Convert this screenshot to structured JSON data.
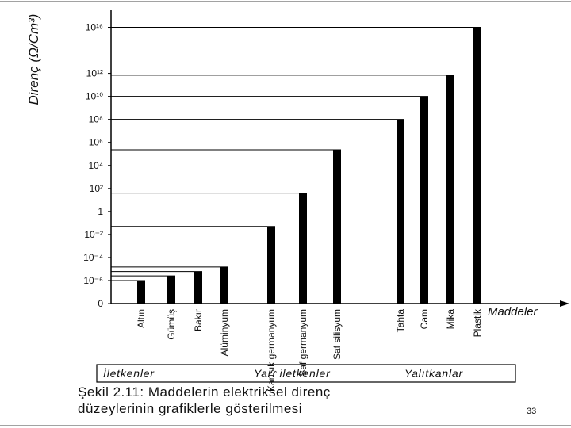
{
  "chart_data": {
    "type": "bar",
    "y_label": "Direnç (Ω/Cm³)",
    "x_label": "Maddeler",
    "log_scale": true,
    "color": "#000000",
    "ylim": [
      1e-08,
      1e+17
    ],
    "yticks": [
      {
        "value": 0,
        "label": "0"
      },
      {
        "value": 1e-06,
        "label": "10⁻⁶"
      },
      {
        "value": 0.0001,
        "label": "10⁻⁴"
      },
      {
        "value": 0.01,
        "label": "10⁻²"
      },
      1,
      {
        "value": 100.0,
        "label": "10²"
      },
      {
        "value": 10000.0,
        "label": "10⁴"
      },
      {
        "value": 1000000.0,
        "label": "10⁶"
      },
      {
        "value": 100000000.0,
        "label": "10⁸"
      },
      {
        "value": 10000000000.0,
        "label": "10¹⁰"
      },
      {
        "value": 1000000000000.0,
        "label": "10¹²"
      },
      {
        "value": 1e+16,
        "label": "10¹⁶"
      }
    ],
    "categories": [
      "Altın",
      "Gümüş",
      "Bakır",
      "Alüminyum",
      "Karışık germanyum",
      "Saf germanyum",
      "Saf silisyum",
      "Tahta",
      "Cam",
      "Mika",
      "Plastik"
    ],
    "values": [
      1e-06,
      2.5e-06,
      6e-06,
      1.5e-05,
      0.05,
      40,
      230000,
      100000000.0,
      10000000000.0,
      700000000000.0,
      1e+16
    ],
    "groups": [
      "İletkenler",
      "Yarı iletkenler",
      "Yalıtkanlar"
    ],
    "caption": [
      "Şekil 2.11: Maddelerin elektriksel direnç",
      "düzeylerinin grafiklerle gösterilmesi"
    ],
    "page_number": 33
  }
}
